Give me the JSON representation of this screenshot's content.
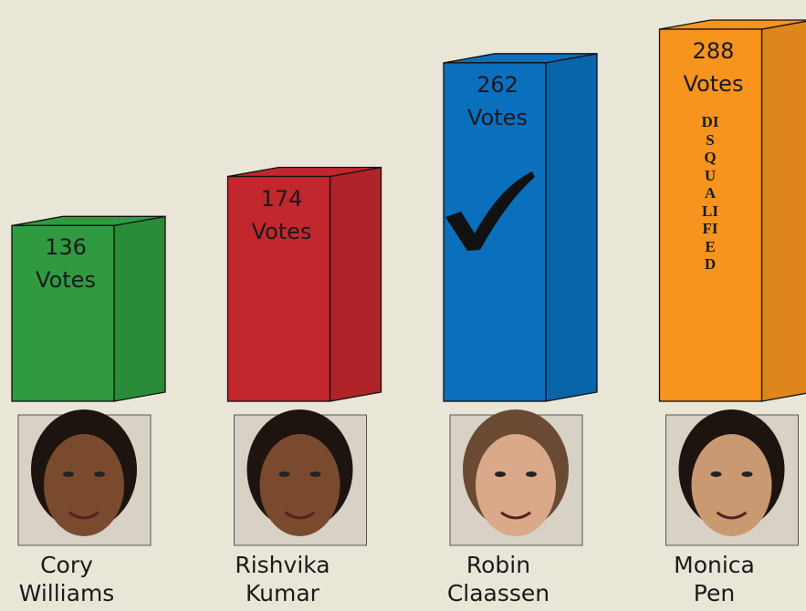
{
  "chart_data": {
    "type": "bar",
    "categories": [
      "Cory Williams",
      "Rishvika Kumar",
      "Robin Claassen",
      "Monica Pen"
    ],
    "values": [
      136,
      174,
      262,
      288
    ],
    "value_labels": [
      "136 Votes",
      "174 Votes",
      "262 Votes",
      "288 Votes"
    ],
    "colors": [
      "#2f9a3f",
      "#c2272d",
      "#0a6fbd",
      "#f7941e"
    ],
    "annotation": "DISQUALIFIED"
  }
}
